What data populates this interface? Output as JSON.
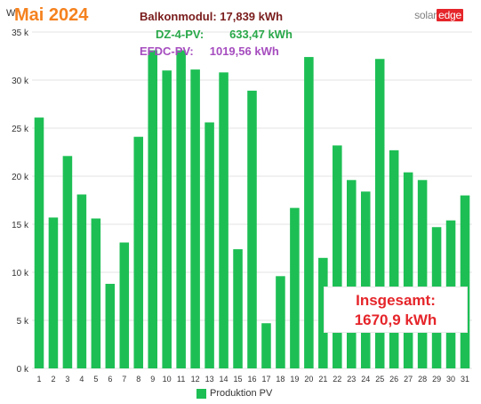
{
  "header": {
    "title": "Mai 2024",
    "lines": [
      {
        "text": "Balkonmodul: 17,839 kWh",
        "color": "#7a1c1c"
      },
      {
        "text": "DZ-4-PV:        633,47 kWh",
        "color": "#2aa84a"
      },
      {
        "text": "EFDC-PV:     1019,56 kWh",
        "color": "#a64dbf"
      }
    ]
  },
  "logo": {
    "part1": "solar",
    "part2": "edge"
  },
  "total": {
    "label": "Insgesamt:",
    "value": "1670,9 kWh"
  },
  "chart_data": {
    "type": "bar",
    "ylabel": "Wh",
    "ylim": [
      0,
      35000
    ],
    "yticks": [
      0,
      5000,
      10000,
      15000,
      20000,
      25000,
      30000,
      35000
    ],
    "ytick_labels": [
      "0 k",
      "5 k",
      "10 k",
      "15 k",
      "20 k",
      "25 k",
      "30 k",
      "35 k"
    ],
    "categories": [
      "1",
      "2",
      "3",
      "4",
      "5",
      "6",
      "7",
      "8",
      "9",
      "10",
      "11",
      "12",
      "13",
      "14",
      "15",
      "16",
      "17",
      "18",
      "19",
      "20",
      "21",
      "22",
      "23",
      "24",
      "25",
      "26",
      "27",
      "28",
      "29",
      "30",
      "31"
    ],
    "series": [
      {
        "name": "Produktion PV",
        "color": "#1dbf54",
        "values": [
          26100,
          15700,
          22100,
          18100,
          15600,
          8800,
          13100,
          24100,
          33100,
          31000,
          33100,
          31100,
          25600,
          30800,
          12400,
          28900,
          4700,
          9600,
          16700,
          32400,
          11500,
          23200,
          19600,
          18400,
          32200,
          22700,
          20400,
          19600,
          14700,
          15400,
          18000
        ]
      }
    ],
    "grid": true,
    "legend_position": "bottom"
  }
}
